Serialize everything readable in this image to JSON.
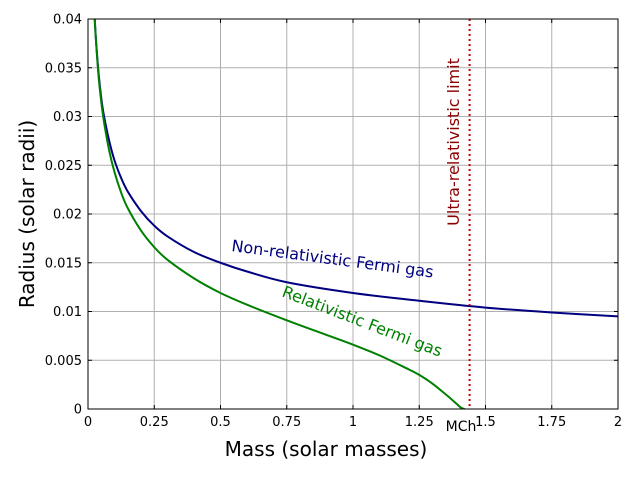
{
  "chart_data": {
    "type": "line",
    "title": "",
    "xlabel": "Mass (solar masses)",
    "ylabel": "Radius (solar radii)",
    "xlim": [
      0,
      2
    ],
    "ylim": [
      0,
      0.04
    ],
    "grid": true,
    "x_ticks": [
      0,
      0.25,
      0.5,
      0.75,
      1,
      1.25,
      1.5,
      1.75,
      2
    ],
    "x_tick_labels": [
      "0",
      "0.25",
      "0.5",
      "0.75",
      "1",
      "1.25",
      "1.5",
      "1.75",
      "2"
    ],
    "y_ticks": [
      0,
      0.005,
      0.01,
      0.015,
      0.02,
      0.025,
      0.03,
      0.035,
      0.04
    ],
    "y_tick_labels": [
      "0",
      "0.005",
      "0.01",
      "0.015",
      "0.02",
      "0.025",
      "0.03",
      "0.035",
      "0.04"
    ],
    "series": [
      {
        "name": "Non-relativistic Fermi gas",
        "color": "#000080",
        "x": [
          0.025,
          0.03,
          0.04,
          0.05,
          0.06,
          0.08,
          0.1,
          0.125,
          0.15,
          0.2,
          0.25,
          0.3,
          0.4,
          0.5,
          0.6,
          0.75,
          1,
          1.25,
          1.5,
          1.75,
          2
        ],
        "y": [
          0.0402,
          0.0379,
          0.0344,
          0.0319,
          0.0301,
          0.0275,
          0.0255,
          0.0237,
          0.0223,
          0.0203,
          0.0188,
          0.0177,
          0.0161,
          0.015,
          0.0141,
          0.013,
          0.0119,
          0.0111,
          0.0104,
          0.0099,
          0.0095
        ]
      },
      {
        "name": "Relativistic Fermi gas",
        "color": "#008000",
        "x": [
          0.025,
          0.03,
          0.04,
          0.05,
          0.06,
          0.08,
          0.1,
          0.125,
          0.15,
          0.2,
          0.25,
          0.3,
          0.4,
          0.5,
          0.6,
          0.75,
          0.9,
          1,
          1.1,
          1.2,
          1.25,
          1.3,
          1.35,
          1.38,
          1.4,
          1.41,
          1.42
        ],
        "y": [
          0.0402,
          0.0378,
          0.0341,
          0.0315,
          0.0295,
          0.0265,
          0.0243,
          0.0222,
          0.0206,
          0.0183,
          0.0166,
          0.0153,
          0.0134,
          0.0119,
          0.0107,
          0.0091,
          0.0076,
          0.0066,
          0.0055,
          0.0042,
          0.0035,
          0.0026,
          0.0015,
          0.0008,
          0.0003,
          0.0001,
          0
        ]
      }
    ],
    "annotations": [
      {
        "text": "Ultra-relativistic limit",
        "type": "vertical-line",
        "x": 1.44,
        "color": "#cc0000",
        "label_color": "#8b0000"
      },
      {
        "text": "MCh",
        "x": 1.44,
        "color": "#000080"
      }
    ]
  }
}
